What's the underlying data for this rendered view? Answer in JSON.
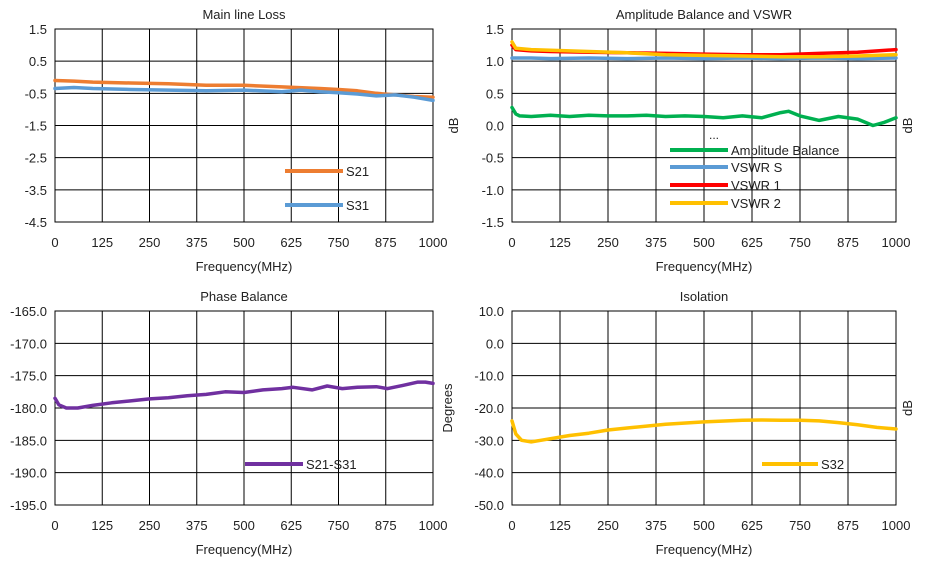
{
  "chart_data": [
    {
      "type": "line",
      "title": "Main line Loss",
      "xlabel": "Frequency(MHz)",
      "ylabel": "",
      "xlim": [
        0,
        1000
      ],
      "ylim": [
        -4.5,
        1.5
      ],
      "xticks": [
        0,
        125,
        250,
        375,
        500,
        625,
        750,
        875,
        1000
      ],
      "yticks": [
        1.5,
        0.5,
        -0.5,
        -1.5,
        -2.5,
        -3.5,
        -4.5
      ],
      "ytick_labels": [
        "1.5",
        "0.5",
        "-0.5",
        "-1.5",
        "-2.5",
        "-3.5",
        "-4.5"
      ],
      "grid": true,
      "series": [
        {
          "name": "S21",
          "color": "#ED7D31",
          "x": [
            0,
            50,
            100,
            200,
            300,
            400,
            500,
            600,
            700,
            750,
            800,
            850,
            900,
            950,
            1000
          ],
          "y": [
            -0.1,
            -0.12,
            -0.15,
            -0.18,
            -0.2,
            -0.25,
            -0.25,
            -0.3,
            -0.35,
            -0.38,
            -0.42,
            -0.5,
            -0.55,
            -0.6,
            -0.62
          ]
        },
        {
          "name": "S31",
          "color": "#5B9BD5",
          "x": [
            0,
            50,
            100,
            200,
            300,
            400,
            500,
            600,
            650,
            700,
            750,
            800,
            850,
            900,
            950,
            1000
          ],
          "y": [
            -0.35,
            -0.32,
            -0.35,
            -0.38,
            -0.4,
            -0.42,
            -0.4,
            -0.45,
            -0.4,
            -0.45,
            -0.48,
            -0.52,
            -0.58,
            -0.55,
            -0.62,
            -0.72
          ]
        }
      ]
    },
    {
      "type": "line",
      "title": "Amplitude Balance and VSWR",
      "xlabel": "Frequency(MHz)",
      "ylabel": "dB",
      "y2label": "dB",
      "xlim": [
        0,
        1000
      ],
      "ylim": [
        -1.5,
        1.5
      ],
      "xticks": [
        0,
        125,
        250,
        375,
        500,
        625,
        750,
        875,
        1000
      ],
      "yticks": [
        1.5,
        1.0,
        0.5,
        0.0,
        -0.5,
        -1.0,
        -1.5
      ],
      "ytick_labels": [
        "1.5",
        "1.0",
        "0.5",
        "0.0",
        "-0.5",
        "-1.0",
        "-1.5"
      ],
      "grid": true,
      "legend_extra": "...",
      "series": [
        {
          "name": "Amplitude Balance",
          "color": "#00B050",
          "x": [
            0,
            10,
            20,
            50,
            100,
            150,
            200,
            250,
            300,
            350,
            400,
            450,
            500,
            550,
            600,
            650,
            700,
            720,
            750,
            800,
            850,
            900,
            940,
            970,
            1000
          ],
          "y": [
            0.28,
            0.18,
            0.15,
            0.14,
            0.16,
            0.14,
            0.16,
            0.15,
            0.15,
            0.16,
            0.14,
            0.15,
            0.14,
            0.12,
            0.15,
            0.12,
            0.2,
            0.22,
            0.15,
            0.08,
            0.14,
            0.1,
            0.0,
            0.05,
            0.12
          ]
        },
        {
          "name": "VSWR S",
          "color": "#5B9BD5",
          "x": [
            0,
            50,
            100,
            200,
            300,
            400,
            500,
            600,
            700,
            800,
            900,
            1000
          ],
          "y": [
            1.05,
            1.05,
            1.04,
            1.05,
            1.04,
            1.05,
            1.04,
            1.05,
            1.04,
            1.05,
            1.04,
            1.05
          ]
        },
        {
          "name": "VSWR 1",
          "color": "#FF0000",
          "x": [
            0,
            10,
            50,
            100,
            200,
            300,
            400,
            500,
            600,
            700,
            800,
            900,
            1000
          ],
          "y": [
            1.25,
            1.18,
            1.16,
            1.15,
            1.14,
            1.13,
            1.12,
            1.11,
            1.1,
            1.1,
            1.12,
            1.14,
            1.18
          ]
        },
        {
          "name": "VSWR 2",
          "color": "#FFC000",
          "x": [
            0,
            10,
            50,
            100,
            200,
            300,
            400,
            500,
            600,
            700,
            800,
            900,
            1000
          ],
          "y": [
            1.3,
            1.2,
            1.18,
            1.17,
            1.15,
            1.13,
            1.1,
            1.09,
            1.08,
            1.07,
            1.07,
            1.08,
            1.1
          ]
        }
      ]
    },
    {
      "type": "line",
      "title": "Phase Balance",
      "xlabel": "Frequency(MHz)",
      "ylabel": "Degrees",
      "xlim": [
        0,
        1000
      ],
      "ylim": [
        -195,
        -165
      ],
      "xticks": [
        0,
        125,
        250,
        375,
        500,
        625,
        750,
        875,
        1000
      ],
      "yticks": [
        -165,
        -170,
        -175,
        -180,
        -185,
        -190,
        -195
      ],
      "ytick_labels": [
        "-165.0",
        "-170.0",
        "-175.0",
        "-180.0",
        "-185.0",
        "-190.0",
        "-195.0"
      ],
      "grid": true,
      "series": [
        {
          "name": "S21-S31",
          "color": "#7030A0",
          "x": [
            0,
            10,
            30,
            60,
            100,
            150,
            200,
            250,
            300,
            350,
            400,
            450,
            500,
            550,
            600,
            630,
            680,
            720,
            760,
            800,
            850,
            880,
            920,
            960,
            980,
            1000
          ],
          "y": [
            -178.5,
            -179.5,
            -180.0,
            -180.0,
            -179.6,
            -179.2,
            -178.9,
            -178.6,
            -178.4,
            -178.1,
            -177.9,
            -177.5,
            -177.6,
            -177.2,
            -177.0,
            -176.8,
            -177.2,
            -176.6,
            -177.0,
            -176.8,
            -176.7,
            -177.0,
            -176.5,
            -176.0,
            -176.0,
            -176.2
          ]
        }
      ]
    },
    {
      "type": "line",
      "title": "Isolation",
      "xlabel": "Frequency(MHz)",
      "ylabel": "dB",
      "xlim": [
        0,
        1000
      ],
      "ylim": [
        -50,
        10
      ],
      "xticks": [
        0,
        125,
        250,
        375,
        500,
        625,
        750,
        875,
        1000
      ],
      "yticks": [
        10,
        0,
        -10,
        -20,
        -30,
        -40,
        -50
      ],
      "ytick_labels": [
        "10.0",
        "0.0",
        "-10.0",
        "-20.0",
        "-30.0",
        "-40.0",
        "-50.0"
      ],
      "grid": true,
      "series": [
        {
          "name": "S32",
          "color": "#FFC000",
          "x": [
            0,
            10,
            25,
            50,
            75,
            100,
            150,
            200,
            250,
            300,
            400,
            500,
            600,
            650,
            700,
            750,
            800,
            850,
            900,
            950,
            1000
          ],
          "y": [
            -24,
            -28,
            -30,
            -30.5,
            -30,
            -29.5,
            -28.5,
            -27.8,
            -26.8,
            -26.2,
            -25,
            -24.3,
            -23.8,
            -23.7,
            -23.8,
            -23.8,
            -24,
            -24.5,
            -25.2,
            -26,
            -26.5
          ]
        }
      ]
    }
  ]
}
